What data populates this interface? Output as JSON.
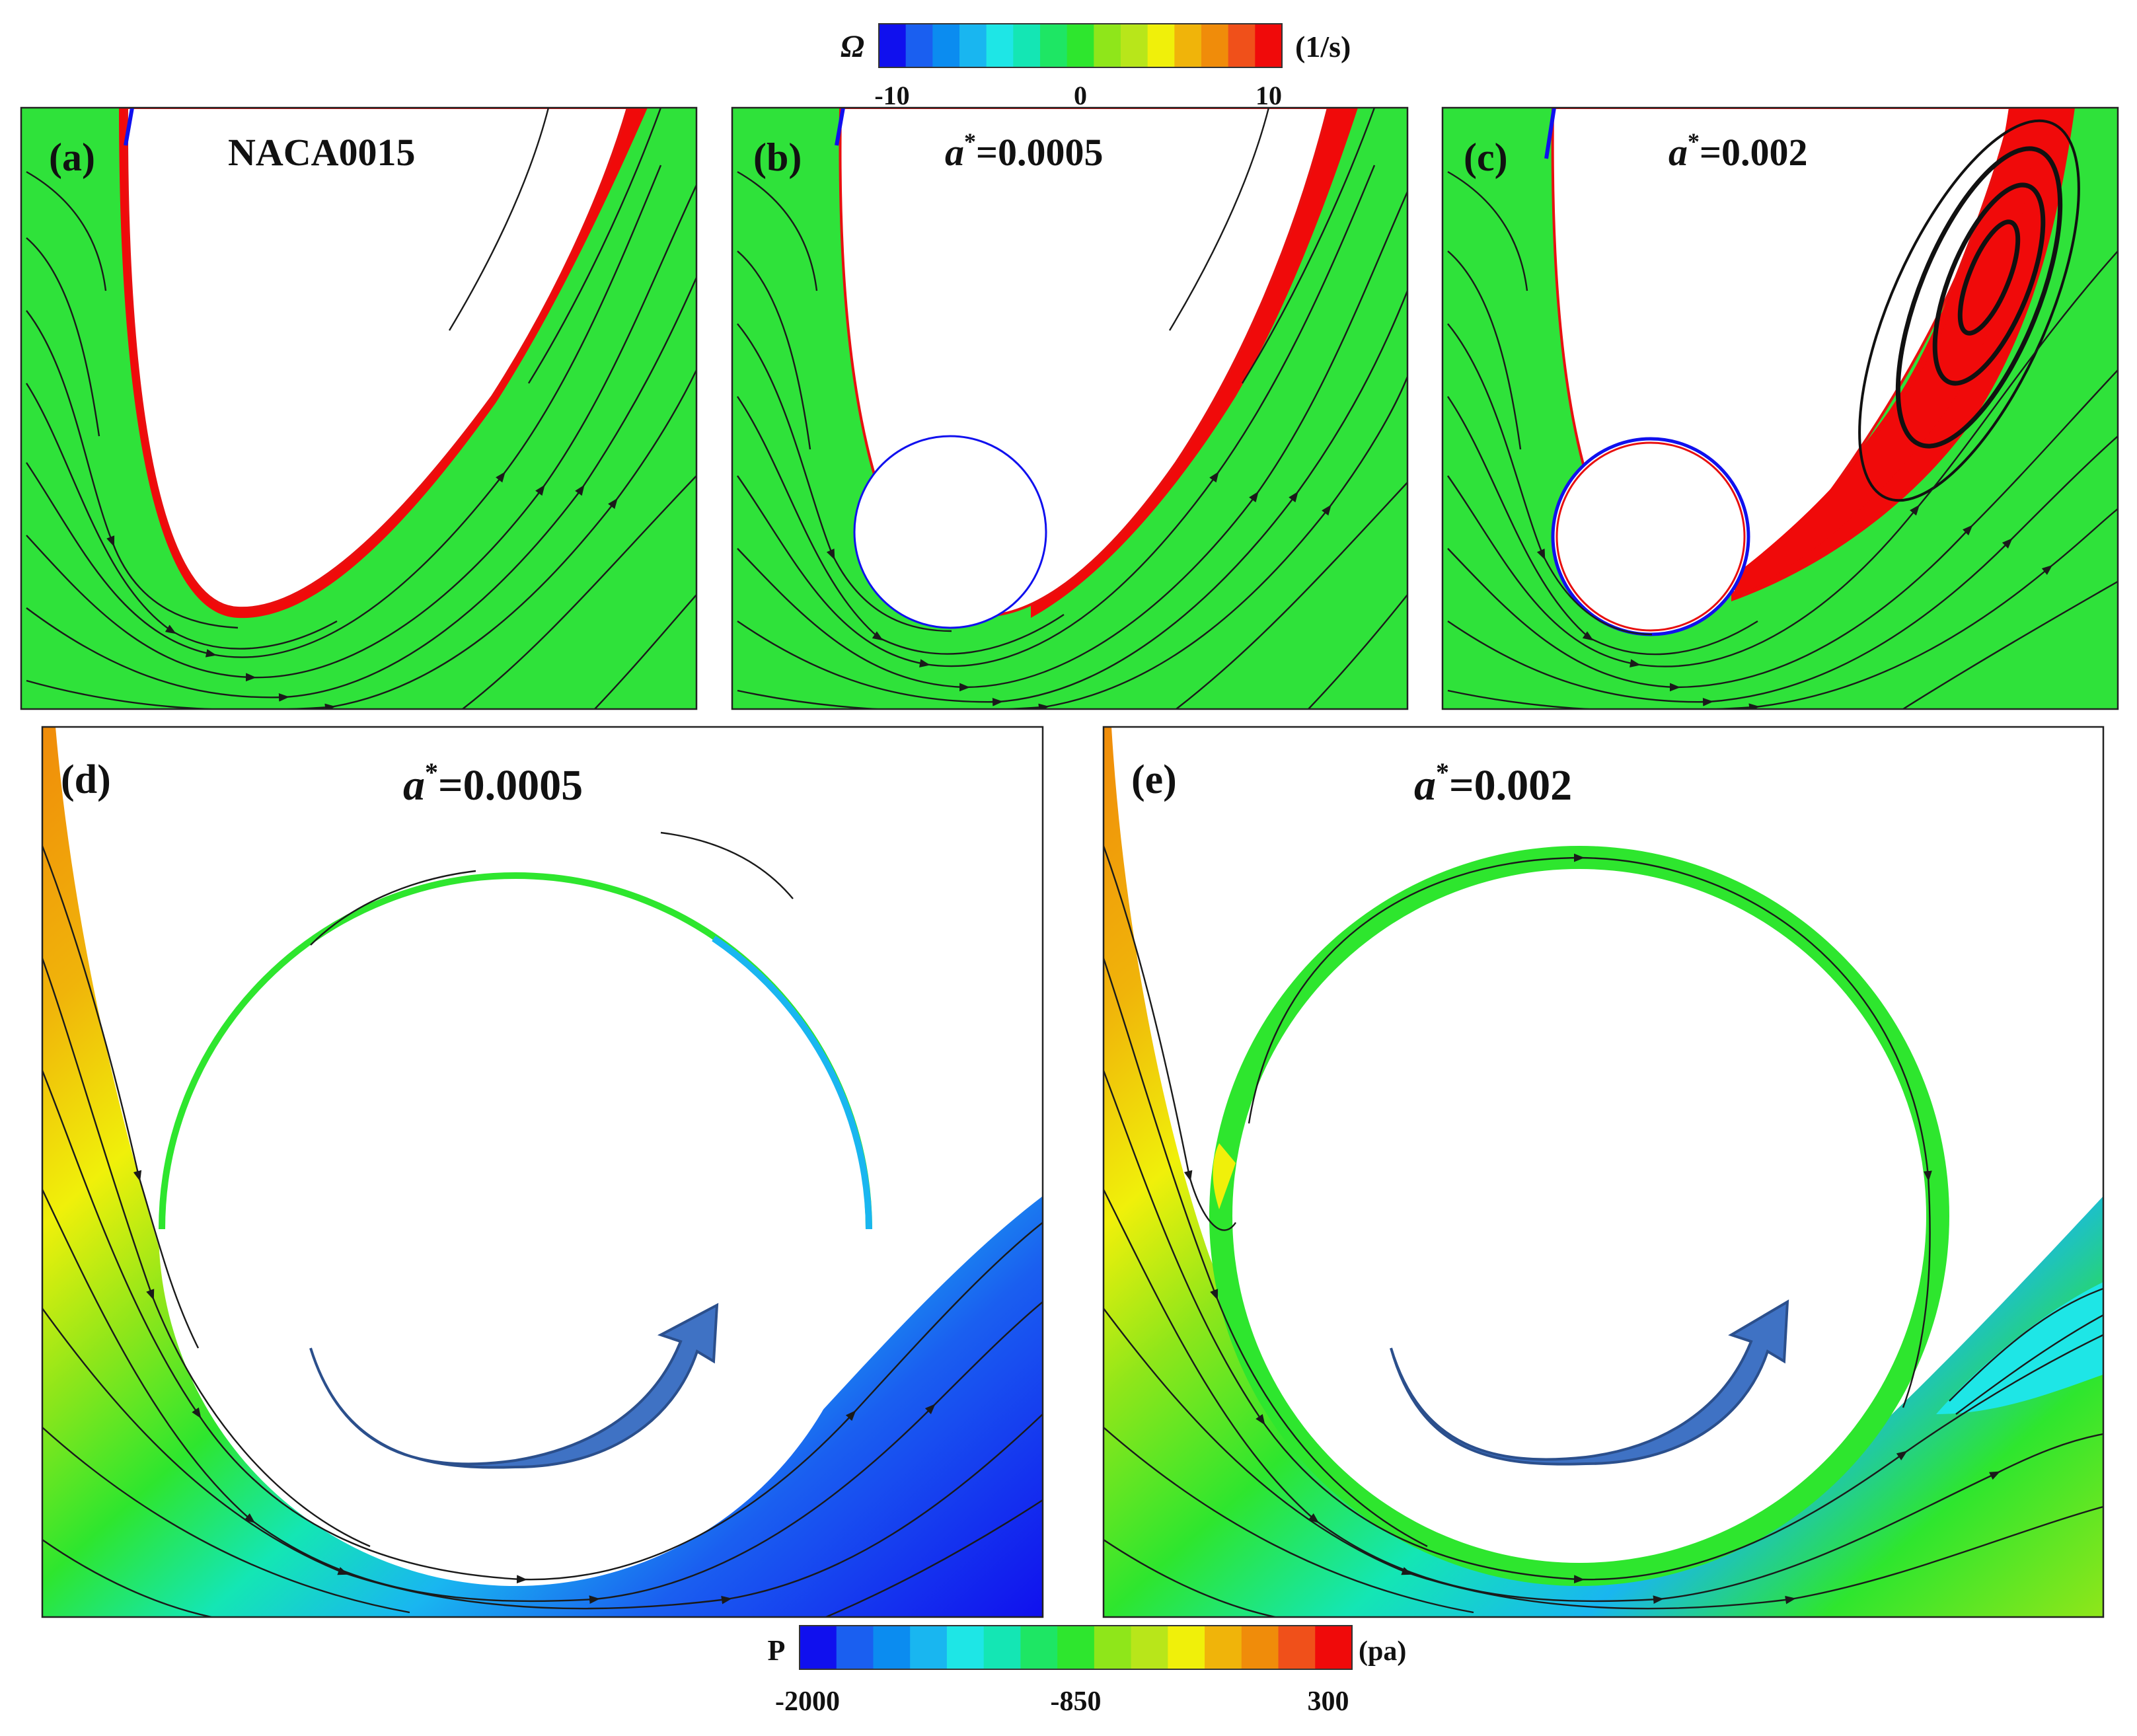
{
  "colors": {
    "blue_deep": "#1010ee",
    "blue": "#1a5ff0",
    "blue_mid": "#0b8cf0",
    "cyan_blue": "#19b6f0",
    "cyan": "#1ee6e6",
    "cyan_green": "#14e6b4",
    "green_light": "#1ee664",
    "green": "#2ee62e",
    "green_yellow": "#8fe61a",
    "yellow_green": "#b8e61a",
    "yellow": "#f0f00a",
    "orange_yellow": "#f0b40a",
    "orange": "#f08c0a",
    "red_orange": "#f0501a",
    "red": "#f00a0a",
    "field_green": "#2fe23a",
    "streamline": "#1a1a1a",
    "arrow_fill": "#3f72c4",
    "arrow_edge": "#2b4f8c"
  },
  "vorticity_colorbar": {
    "symbol": "Ω",
    "unit": "(1/s)",
    "ticks": [
      "-10",
      "0",
      "10"
    ]
  },
  "pressure_colorbar": {
    "symbol": "P",
    "unit": "(pa)",
    "ticks": [
      "-2000",
      "-850",
      "300"
    ]
  },
  "panels": [
    {
      "id": "a",
      "label": "(a)",
      "title_text": "NACA0015",
      "title_sup": "",
      "title_value": ""
    },
    {
      "id": "b",
      "label": "(b)",
      "title_text": "a",
      "title_sup": "*",
      "title_value": "=0.0005"
    },
    {
      "id": "c",
      "label": "(c)",
      "title_text": "a",
      "title_sup": "*",
      "title_value": "=0.002"
    },
    {
      "id": "d",
      "label": "(d)",
      "title_text": "a",
      "title_sup": "*",
      "title_value": "=0.0005"
    },
    {
      "id": "e",
      "label": "(e)",
      "title_text": "a",
      "title_sup": "*",
      "title_value": "=0.002"
    }
  ]
}
